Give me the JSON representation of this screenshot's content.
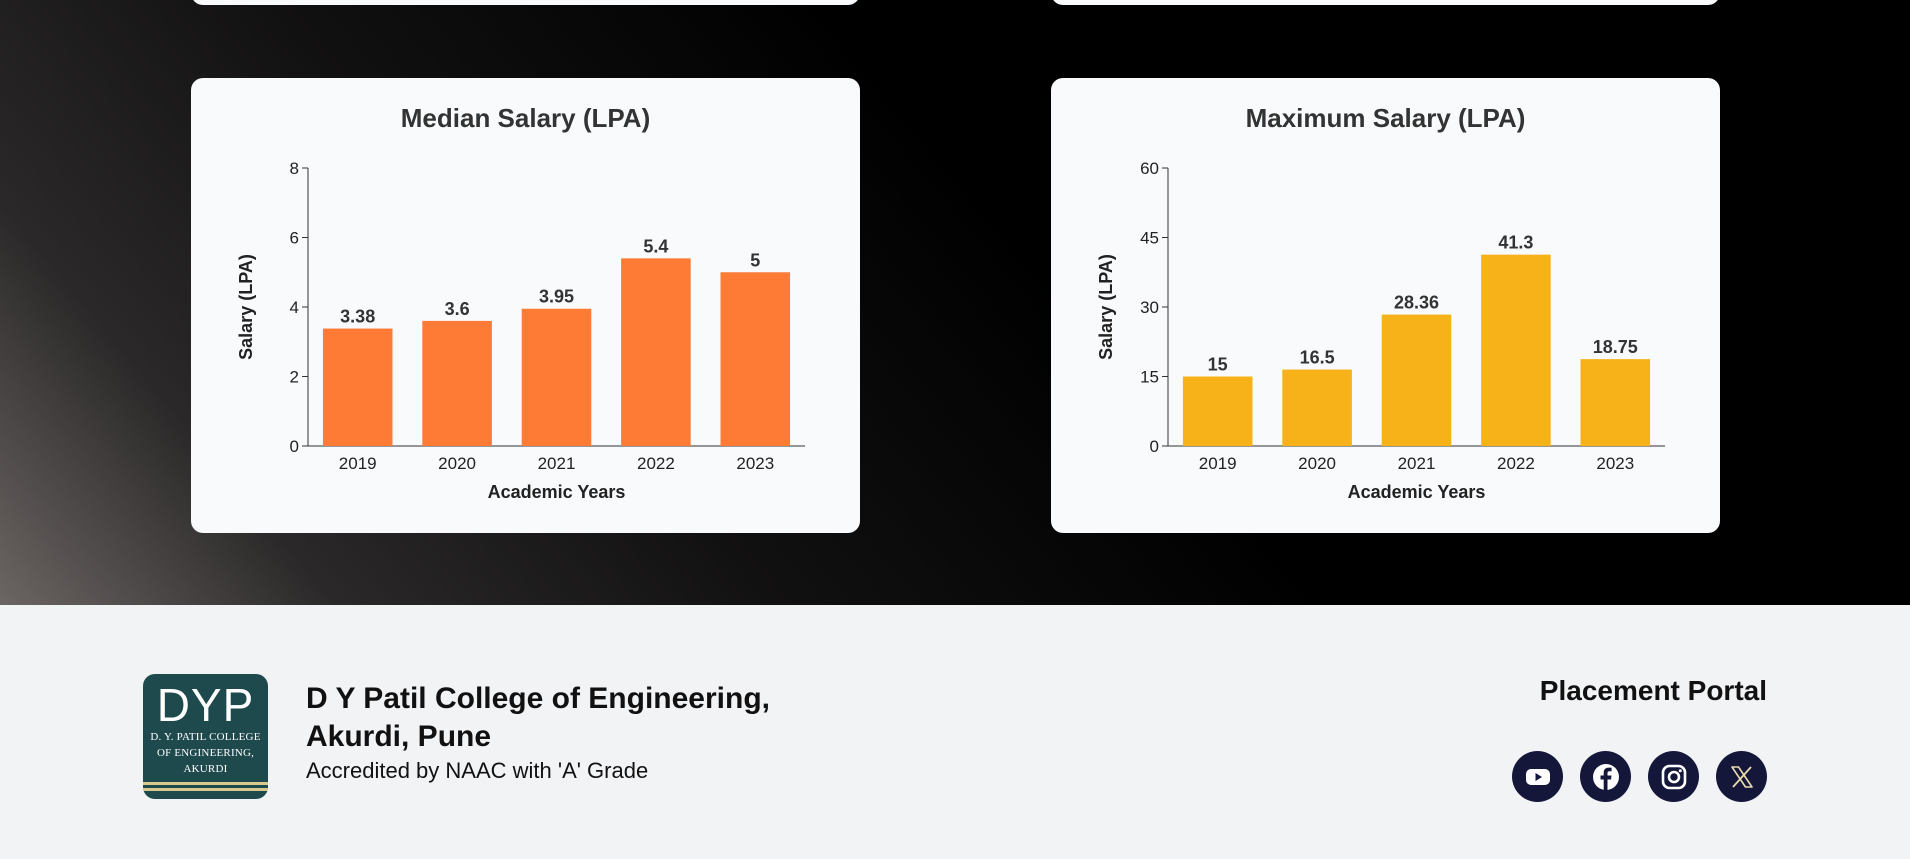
{
  "charts": {
    "median": {
      "title": "Median Salary (LPA)",
      "ylabel": "Salary (LPA)",
      "xlabel": "Academic Years",
      "color": "#fe7b36"
    },
    "maximum": {
      "title": "Maximum Salary (LPA)",
      "ylabel": "Salary (LPA)",
      "xlabel": "Academic Years",
      "color": "#f8b219"
    }
  },
  "chart_data": [
    {
      "type": "bar",
      "title": "Median Salary (LPA)",
      "xlabel": "Academic Years",
      "ylabel": "Salary (LPA)",
      "categories": [
        "2019",
        "2020",
        "2021",
        "2022",
        "2023"
      ],
      "values": [
        3.38,
        3.6,
        3.95,
        5.4,
        5
      ],
      "ylim": [
        0,
        8
      ],
      "yticks": [
        0,
        2,
        4,
        6,
        8
      ],
      "grid": false
    },
    {
      "type": "bar",
      "title": "Maximum Salary (LPA)",
      "xlabel": "Academic Years",
      "ylabel": "Salary (LPA)",
      "categories": [
        "2019",
        "2020",
        "2021",
        "2022",
        "2023"
      ],
      "values": [
        15,
        16.5,
        28.36,
        41.3,
        18.75
      ],
      "ylim": [
        0,
        60
      ],
      "yticks": [
        0,
        15,
        30,
        45,
        60
      ],
      "grid": false
    }
  ],
  "footer": {
    "logo_mark": "DYP",
    "logo_line1": "D. Y. PATIL COLLEGE",
    "logo_line2": "OF ENGINEERING,",
    "logo_line3": "AKURDI",
    "college_line1": "D Y Patil College of Engineering,",
    "college_line2": "Akurdi, Pune",
    "accreditation": "Accredited by NAAC with 'A' Grade",
    "portal_title": "Placement Portal",
    "socials": [
      "youtube-icon",
      "facebook-icon",
      "instagram-icon",
      "x-icon"
    ]
  }
}
